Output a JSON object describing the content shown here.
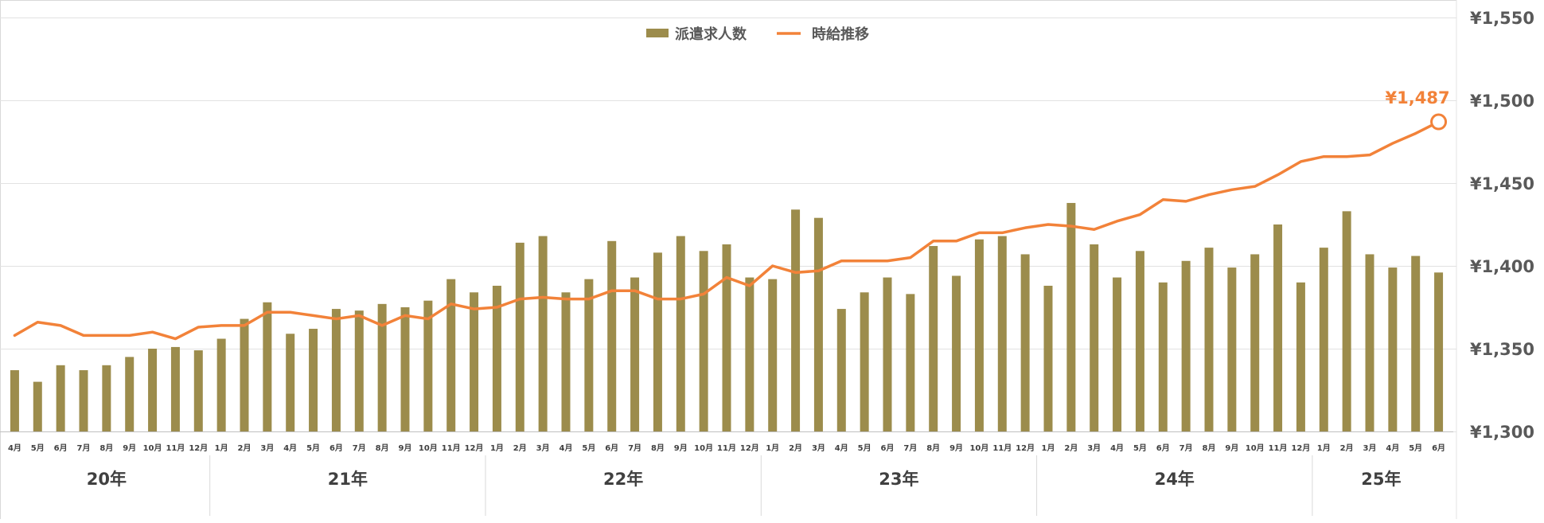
{
  "chart_data": {
    "type": "bar+line",
    "title": "",
    "ylabel": "",
    "xlabel": "",
    "grid": true,
    "legend_position": "top-center",
    "ylim": [
      1300,
      1550
    ],
    "y_ticks": [
      "¥1,550",
      "¥1,500",
      "¥1,450",
      "¥1,400",
      "¥1,350",
      "¥1,300"
    ],
    "y_tick_values": [
      1550,
      1500,
      1450,
      1400,
      1350,
      1300
    ],
    "months": [
      "4月",
      "5月",
      "6月",
      "7月",
      "8月",
      "9月",
      "10月",
      "11月",
      "12月",
      "1月",
      "2月",
      "3月",
      "4月",
      "5月",
      "6月",
      "7月",
      "8月",
      "9月",
      "10月",
      "11月",
      "12月",
      "1月",
      "2月",
      "3月",
      "4月",
      "5月",
      "6月",
      "7月",
      "8月",
      "9月",
      "10月",
      "11月",
      "12月",
      "1月",
      "2月",
      "3月",
      "4月",
      "5月",
      "6月",
      "7月",
      "8月",
      "9月",
      "10月",
      "11月",
      "12月",
      "1月",
      "2月",
      "3月",
      "4月",
      "5月",
      "6月",
      "7月",
      "8月",
      "9月",
      "10月",
      "11月",
      "12月",
      "1月",
      "2月",
      "3月",
      "4月",
      "5月",
      "6月"
    ],
    "year_groups": [
      {
        "label": "20年",
        "count": 9
      },
      {
        "label": "21年",
        "count": 12
      },
      {
        "label": "22年",
        "count": 12
      },
      {
        "label": "23年",
        "count": 12
      },
      {
        "label": "24年",
        "count": 12
      },
      {
        "label": "25年",
        "count": 6
      }
    ],
    "series": [
      {
        "name": "派遣求人数",
        "type": "bar",
        "axis": "none-shown",
        "color": "#9C8C4C",
        "values": [
          1337,
          1330,
          1340,
          1337,
          1340,
          1345,
          1350,
          1351,
          1349,
          1356,
          1368,
          1378,
          1359,
          1362,
          1374,
          1373,
          1377,
          1375,
          1379,
          1392,
          1384,
          1388,
          1414,
          1418,
          1384,
          1392,
          1415,
          1393,
          1408,
          1418,
          1409,
          1413,
          1393,
          1392,
          1434,
          1429,
          1374,
          1384,
          1393,
          1383,
          1412,
          1394,
          1416,
          1418,
          1407,
          1388,
          1438,
          1413,
          1393,
          1409,
          1390,
          1403,
          1411,
          1399,
          1407,
          1425,
          1390,
          1411,
          1433,
          1407,
          1399,
          1406,
          1396
        ]
      },
      {
        "name": "時給推移",
        "type": "line",
        "axis": "right",
        "color": "#F28239",
        "values": [
          1358,
          1366,
          1364,
          1358,
          1358,
          1358,
          1360,
          1356,
          1363,
          1364,
          1364,
          1372,
          1372,
          1370,
          1368,
          1370,
          1364,
          1370,
          1368,
          1377,
          1374,
          1375,
          1380,
          1381,
          1380,
          1380,
          1385,
          1385,
          1380,
          1380,
          1383,
          1393,
          1388,
          1400,
          1396,
          1397,
          1403,
          1403,
          1403,
          1405,
          1415,
          1415,
          1420,
          1420,
          1423,
          1425,
          1424,
          1422,
          1427,
          1431,
          1440,
          1439,
          1443,
          1446,
          1448,
          1455,
          1463,
          1466,
          1466,
          1467,
          1474,
          1480,
          1487
        ]
      }
    ],
    "annotations": [
      {
        "series": "時給推移",
        "index": 62,
        "label": "¥1,487"
      }
    ]
  }
}
